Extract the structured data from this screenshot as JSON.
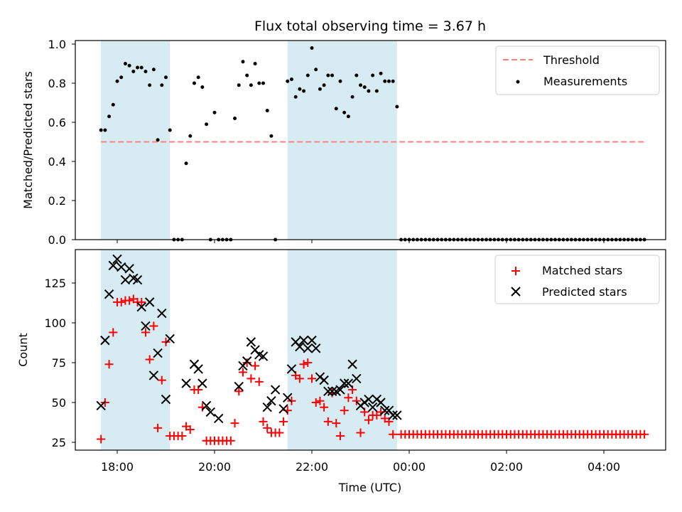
{
  "chart_data": [
    {
      "type": "scatter",
      "title": "Flux total observing time = 3.67 h",
      "xlabel": "",
      "ylabel": "Matched/Predicted stars",
      "ylim": [
        0,
        1.0
      ],
      "yticks": [
        "0.0",
        "0.2",
        "0.4",
        "0.6",
        "0.8",
        "1.0"
      ],
      "shaded_regions": [
        [
          "17:40",
          "19:05"
        ],
        [
          "21:30",
          "23:45"
        ]
      ],
      "threshold": {
        "name": "Threshold",
        "value": 0.5,
        "x_range": [
          "17:40",
          "04:50"
        ],
        "color": "#ff8080"
      },
      "legend": [
        "Threshold",
        "Measurements"
      ],
      "legend_position": "top-right",
      "series": [
        {
          "name": "Measurements",
          "color": "#000000",
          "x": [
            "17:40",
            "17:45",
            "17:50",
            "17:55",
            "18:00",
            "18:05",
            "18:10",
            "18:15",
            "18:20",
            "18:25",
            "18:30",
            "18:35",
            "18:40",
            "18:45",
            "18:50",
            "18:55",
            "19:00",
            "19:05",
            "19:10",
            "19:15",
            "19:20",
            "19:25",
            "19:30",
            "19:35",
            "19:40",
            "19:45",
            "19:50",
            "19:55",
            "20:00",
            "20:05",
            "20:10",
            "20:15",
            "20:20",
            "20:25",
            "20:30",
            "20:35",
            "20:40",
            "20:45",
            "20:50",
            "20:55",
            "21:00",
            "21:05",
            "21:10",
            "21:15",
            "21:30",
            "21:35",
            "21:40",
            "21:45",
            "21:50",
            "21:55",
            "22:00",
            "22:05",
            "22:10",
            "22:15",
            "22:20",
            "22:25",
            "22:30",
            "22:35",
            "22:40",
            "22:45",
            "22:50",
            "22:55",
            "23:00",
            "23:05",
            "23:10",
            "23:15",
            "23:20",
            "23:25",
            "23:30",
            "23:35",
            "23:40",
            "23:45"
          ],
          "y": [
            0.56,
            0.56,
            0.63,
            0.69,
            0.81,
            0.83,
            0.9,
            0.89,
            0.86,
            0.88,
            0.88,
            0.86,
            0.79,
            0.87,
            0.51,
            0.79,
            0.83,
            0.56,
            0,
            0,
            0,
            0.39,
            0.53,
            0.8,
            0.83,
            0.78,
            0.59,
            0,
            0.65,
            0,
            0,
            0,
            0,
            0.62,
            0.79,
            0.91,
            0.84,
            0.79,
            0.9,
            0.8,
            0.8,
            0.66,
            0.53,
            0,
            0.81,
            0.82,
            0.73,
            0.77,
            0.76,
            0.84,
            0.98,
            0.87,
            0.77,
            0.79,
            0.84,
            0.84,
            0.67,
            0.81,
            0.65,
            0.63,
            0.73,
            0.84,
            0.79,
            0.78,
            0.76,
            0.84,
            0.76,
            0.85,
            0.81,
            0.81,
            0.81,
            0.68
          ],
          "x2_start": "23:45",
          "x2_end": "04:50",
          "x2_step_minutes": 5,
          "x2_value": 0
        }
      ]
    },
    {
      "type": "scatter",
      "title": "",
      "xlabel": "Time (UTC)",
      "ylabel": "Count",
      "ylim": [
        20,
        145
      ],
      "yticks": [
        "25",
        "50",
        "75",
        "100",
        "125"
      ],
      "xticks": [
        "18:00",
        "20:00",
        "22:00",
        "00:00",
        "02:00",
        "04:00"
      ],
      "shaded_regions": [
        [
          "17:40",
          "19:05"
        ],
        [
          "21:30",
          "23:45"
        ]
      ],
      "legend": [
        "Matched stars",
        "Predicted stars"
      ],
      "legend_position": "top-right",
      "series": [
        {
          "name": "Matched stars",
          "marker": "+",
          "color": "#ff0000",
          "x": [
            "17:40",
            "17:45",
            "17:50",
            "17:55",
            "18:00",
            "18:05",
            "18:10",
            "18:15",
            "18:20",
            "18:25",
            "18:30",
            "18:35",
            "18:40",
            "18:45",
            "18:50",
            "18:55",
            "19:00",
            "19:05",
            "19:10",
            "19:15",
            "19:20",
            "19:25",
            "19:30",
            "19:35",
            "19:40",
            "19:45",
            "19:50",
            "19:55",
            "20:00",
            "20:05",
            "20:10",
            "20:15",
            "20:20",
            "20:25",
            "20:30",
            "20:35",
            "20:40",
            "20:45",
            "20:50",
            "20:55",
            "21:00",
            "21:05",
            "21:10",
            "21:15",
            "21:20",
            "21:25",
            "21:30",
            "21:35",
            "21:40",
            "21:45",
            "21:50",
            "21:55",
            "22:00",
            "22:05",
            "22:10",
            "22:15",
            "22:20",
            "22:25",
            "22:30",
            "22:35",
            "22:40",
            "22:45",
            "22:50",
            "22:55",
            "23:00",
            "23:05",
            "23:10",
            "23:15",
            "23:20",
            "23:25",
            "23:30",
            "23:35",
            "23:40"
          ],
          "y": [
            27,
            50,
            74,
            94,
            113,
            113,
            114,
            114,
            115,
            113,
            113,
            94,
            77,
            98,
            34,
            64,
            88,
            29,
            29,
            29,
            29,
            35,
            33,
            58,
            58,
            47,
            26,
            26,
            26,
            26,
            26,
            26,
            26,
            37,
            57,
            69,
            75,
            65,
            73,
            63,
            38,
            34,
            31,
            31,
            31,
            38,
            45,
            51,
            67,
            65,
            74,
            75,
            65,
            50,
            51,
            47,
            38,
            56,
            37,
            29,
            45,
            53,
            58,
            51,
            31,
            44,
            39,
            42,
            42,
            44,
            40,
            38,
            30
          ],
          "x2_start": "23:45",
          "x2_end": "04:50",
          "x2_step_minutes": 5,
          "x2_value": 30
        },
        {
          "name": "Predicted stars",
          "marker": "x",
          "color": "#000000",
          "x": [
            "17:40",
            "17:45",
            "17:50",
            "17:55",
            "18:00",
            "18:05",
            "18:10",
            "18:15",
            "18:20",
            "18:25",
            "18:30",
            "18:35",
            "18:40",
            "18:45",
            "18:50",
            "18:55",
            "19:00",
            "19:05",
            "19:25",
            "19:35",
            "19:40",
            "19:45",
            "19:50",
            "19:55",
            "20:05",
            "20:30",
            "20:35",
            "20:40",
            "20:45",
            "20:50",
            "20:55",
            "21:00",
            "21:05",
            "21:10",
            "21:15",
            "21:25",
            "21:30",
            "21:35",
            "21:40",
            "21:45",
            "21:50",
            "21:55",
            "22:00",
            "22:05",
            "22:10",
            "22:15",
            "22:20",
            "22:25",
            "22:30",
            "22:35",
            "22:40",
            "22:45",
            "22:50",
            "22:55",
            "23:00",
            "23:05",
            "23:10",
            "23:15",
            "23:20",
            "23:25",
            "23:30",
            "23:35",
            "23:40",
            "23:45"
          ],
          "y": [
            48,
            89,
            118,
            136,
            140,
            135,
            127,
            134,
            128,
            127,
            110,
            98,
            113,
            67,
            81,
            106,
            52,
            90,
            62,
            74,
            71,
            62,
            48,
            44,
            40,
            60,
            73,
            76,
            88,
            83,
            80,
            79,
            47,
            51,
            58,
            46,
            53,
            71,
            88,
            85,
            89,
            84,
            89,
            84,
            66,
            64,
            57,
            57,
            57,
            58,
            62,
            62,
            74,
            65,
            48,
            50,
            52,
            47,
            52,
            50,
            45,
            45,
            42,
            42
          ]
        }
      ]
    }
  ]
}
